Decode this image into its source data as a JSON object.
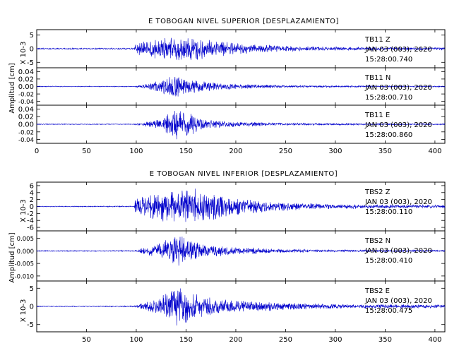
{
  "chart_data": [
    {
      "type": "line",
      "title": "E TOBOGAN NIVEL SUPERIOR [DESPLAZAMIENTO]",
      "xlim": [
        0,
        410
      ],
      "xticks": [
        "0",
        "50",
        "100",
        "150",
        "200",
        "250",
        "300",
        "350",
        "400"
      ],
      "trace_color": "#0000cc",
      "panels": [
        {
          "ylabel": "X 10-3",
          "ylim": [
            -7,
            7
          ],
          "yticks": [
            {
              "v": 5,
              "t": "5"
            },
            {
              "v": 0,
              "t": "0"
            },
            {
              "v": -5,
              "t": "-5"
            }
          ],
          "station": "TB11",
          "component": "Z",
          "date": "JAN 03 (003), 2020",
          "time": "15:28:00.740",
          "envelope": [
            [
              0,
              0.2
            ],
            [
              98,
              0.25
            ],
            [
              99,
              2.0
            ],
            [
              110,
              2.8
            ],
            [
              130,
              3.8
            ],
            [
              150,
              4.2
            ],
            [
              170,
              3.3
            ],
            [
              200,
              1.9
            ],
            [
              250,
              1.0
            ],
            [
              300,
              0.6
            ],
            [
              350,
              0.5
            ],
            [
              410,
              0.4
            ]
          ]
        },
        {
          "ylabel": "",
          "ylim": [
            -0.05,
            0.05
          ],
          "yticks": [
            {
              "v": 0.04,
              "t": "0.04"
            },
            {
              "v": 0.02,
              "t": "0.02"
            },
            {
              "v": 0.0,
              "t": "0.00"
            },
            {
              "v": -0.02,
              "t": "-0.02"
            },
            {
              "v": -0.04,
              "t": "-0.04"
            }
          ],
          "station": "TB11",
          "component": "N",
          "date": "JAN 03 (003), 2020",
          "time": "15:28:00.710",
          "envelope": [
            [
              0,
              0.001
            ],
            [
              98,
              0.001
            ],
            [
              105,
              0.004
            ],
            [
              120,
              0.015
            ],
            [
              140,
              0.03
            ],
            [
              150,
              0.022
            ],
            [
              170,
              0.012
            ],
            [
              200,
              0.006
            ],
            [
              250,
              0.003
            ],
            [
              300,
              0.002
            ],
            [
              410,
              0.0015
            ]
          ]
        },
        {
          "ylabel": "",
          "ylim": [
            -0.05,
            0.05
          ],
          "yticks": [
            {
              "v": 0.04,
              "t": "0.04"
            },
            {
              "v": 0.02,
              "t": "0.02"
            },
            {
              "v": 0.0,
              "t": "0.00"
            },
            {
              "v": -0.02,
              "t": "-0.02"
            },
            {
              "v": -0.04,
              "t": "-0.04"
            }
          ],
          "station": "TB11",
          "component": "E",
          "date": "JAN 03 (003), 2020",
          "time": "15:28:00.860",
          "envelope": [
            [
              0,
              0.001
            ],
            [
              98,
              0.001
            ],
            [
              105,
              0.004
            ],
            [
              125,
              0.012
            ],
            [
              140,
              0.04
            ],
            [
              150,
              0.03
            ],
            [
              170,
              0.012
            ],
            [
              200,
              0.006
            ],
            [
              250,
              0.003
            ],
            [
              300,
              0.002
            ],
            [
              410,
              0.0015
            ]
          ]
        }
      ],
      "common_ylabel": "Amplitud [cm]"
    },
    {
      "type": "line",
      "title": "E TOBOGAN NIVEL INFERIOR [DESPLAZAMIENTO]",
      "xlim": [
        0,
        410
      ],
      "xticks": [
        "50",
        "100",
        "150",
        "200",
        "250",
        "300",
        "350",
        "400"
      ],
      "trace_color": "#0000cc",
      "panels": [
        {
          "ylabel": "X 10-3",
          "ylim": [
            -7,
            7
          ],
          "yticks": [
            {
              "v": 6,
              "t": "6"
            },
            {
              "v": 4,
              "t": "4"
            },
            {
              "v": 2,
              "t": "2"
            },
            {
              "v": 0,
              "t": "0"
            },
            {
              "v": -2,
              "t": "-2"
            },
            {
              "v": -4,
              "t": "-4"
            },
            {
              "v": -6,
              "t": "-6"
            }
          ],
          "station": "TBS2",
          "component": "Z",
          "date": "JAN 03 (003), 2020",
          "time": "15:28:00.110",
          "envelope": [
            [
              0,
              0.1
            ],
            [
              98,
              0.15
            ],
            [
              99,
              2.0
            ],
            [
              110,
              3.0
            ],
            [
              130,
              4.5
            ],
            [
              150,
              5.5
            ],
            [
              170,
              4.0
            ],
            [
              200,
              2.4
            ],
            [
              250,
              1.1
            ],
            [
              300,
              0.6
            ],
            [
              410,
              0.4
            ]
          ]
        },
        {
          "ylabel": "",
          "ylim": [
            -0.012,
            0.008
          ],
          "yticks": [
            {
              "v": 0.005,
              "t": "0.005"
            },
            {
              "v": 0.0,
              "t": "0.000"
            },
            {
              "v": -0.005,
              "t": "-0.005"
            },
            {
              "v": -0.01,
              "t": "-0.010"
            }
          ],
          "station": "TBS2",
          "component": "N",
          "date": "JAN 03 (003), 2020",
          "time": "15:28:00.410",
          "envelope": [
            [
              0,
              0.0002
            ],
            [
              98,
              0.0002
            ],
            [
              105,
              0.001
            ],
            [
              125,
              0.003
            ],
            [
              140,
              0.0065
            ],
            [
              150,
              0.0045
            ],
            [
              170,
              0.0025
            ],
            [
              200,
              0.0014
            ],
            [
              250,
              0.0007
            ],
            [
              300,
              0.0004
            ],
            [
              410,
              0.0003
            ]
          ]
        },
        {
          "ylabel": "X 10-3",
          "ylim": [
            -7,
            7
          ],
          "yticks": [
            {
              "v": 5,
              "t": "5"
            },
            {
              "v": 0,
              "t": "0"
            },
            {
              "v": -5,
              "t": "-5"
            }
          ],
          "station": "TBS2",
          "component": "E",
          "date": "JAN 03 (003), 2020",
          "time": "15:28:00.475",
          "envelope": [
            [
              0,
              0.1
            ],
            [
              98,
              0.15
            ],
            [
              105,
              0.8
            ],
            [
              125,
              2.5
            ],
            [
              140,
              5.5
            ],
            [
              150,
              4.2
            ],
            [
              170,
              2.5
            ],
            [
              200,
              1.5
            ],
            [
              250,
              0.9
            ],
            [
              300,
              0.6
            ],
            [
              410,
              0.4
            ]
          ]
        }
      ],
      "common_ylabel": "Amplitud [cm]"
    }
  ]
}
